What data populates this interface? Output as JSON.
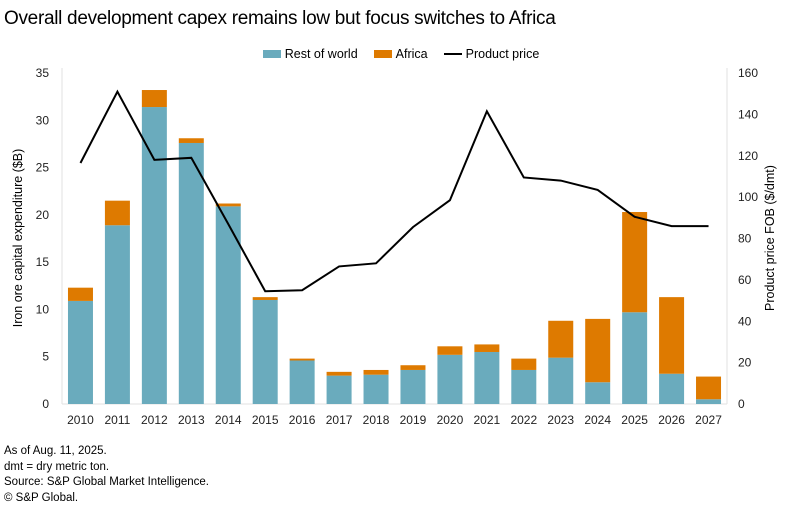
{
  "title": "Overall development capex remains low but focus switches to Africa",
  "legend": {
    "rest_of_world": "Rest of world",
    "africa": "Africa",
    "product_price": "Product price"
  },
  "colors": {
    "rest_of_world": "#6aabbd",
    "africa": "#de7a00",
    "product_price": "#000000",
    "axis": "#e2e2e2"
  },
  "notes": [
    "As of Aug. 11, 2025.",
    "dmt = dry metric ton.",
    "Source: S&P Global Market Intelligence.",
    "© S&P Global."
  ],
  "chart_data": {
    "type": "bar",
    "stacked": true,
    "title": "Overall development capex remains low but focus switches to Africa",
    "categories": [
      "2010",
      "2011",
      "2012",
      "2013",
      "2014",
      "2015",
      "2016",
      "2017",
      "2018",
      "2019",
      "2020",
      "2021",
      "2022",
      "2023",
      "2024",
      "2025",
      "2026",
      "2027"
    ],
    "series": [
      {
        "name": "Rest of world",
        "type": "bar",
        "axis": "left",
        "values": [
          10.9,
          18.9,
          31.4,
          27.6,
          20.9,
          11.0,
          4.6,
          3.0,
          3.1,
          3.6,
          5.2,
          5.5,
          3.6,
          4.9,
          2.3,
          9.7,
          3.2,
          0.5
        ]
      },
      {
        "name": "Africa",
        "type": "bar",
        "axis": "left",
        "values": [
          1.4,
          2.6,
          1.8,
          0.5,
          0.3,
          0.3,
          0.2,
          0.4,
          0.5,
          0.5,
          0.9,
          0.8,
          1.2,
          3.9,
          6.7,
          10.6,
          8.1,
          2.4
        ]
      },
      {
        "name": "Product price",
        "type": "line",
        "axis": "right",
        "values": [
          116.5,
          151,
          118,
          119,
          87,
          54.5,
          55,
          66.5,
          68,
          85.5,
          98.5,
          141.5,
          109.5,
          108,
          103.5,
          90.5,
          86,
          86
        ]
      }
    ],
    "xlabel": "",
    "ylabel": "Iron ore capital expenditure ($B)",
    "ylabel_right": "Product price FOB ($/dmt)",
    "ylim": [
      0,
      35
    ],
    "ylim_right": [
      0,
      160
    ],
    "yticks": [
      0,
      5,
      10,
      15,
      20,
      25,
      30,
      35
    ],
    "yticks_right": [
      0,
      20,
      40,
      60,
      80,
      100,
      120,
      140,
      160
    ],
    "grid": false,
    "legend_position": "top-center"
  }
}
